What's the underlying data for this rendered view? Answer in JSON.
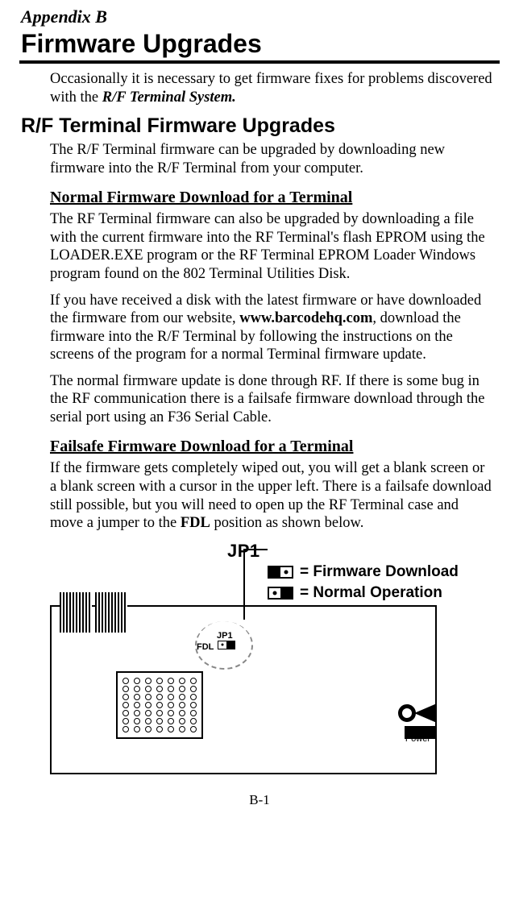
{
  "appendix": "Appendix B",
  "title": "Firmware Upgrades",
  "intro_a": "Occasionally it is necessary to get firmware fixes for problems discovered with the ",
  "intro_em": "R/F Terminal System.",
  "section": "R/F Terminal Firmware Upgrades",
  "p1": "The R/F Terminal firmware can be upgraded by downloading new firmware into the R/F Terminal from your computer.",
  "sub1": "Normal Firmware Download for a Terminal",
  "p2": "The RF Terminal firmware can also be upgraded by downloading a file with the current firmware into the RF Terminal's flash EPROM using the LOADER.EXE program or the RF Terminal EPROM Loader Windows program found on the 802 Terminal Utilities Disk.",
  "p3_a": "If you have received a disk with the latest firmware or have downloaded the firmware from our website, ",
  "p3_b": "www.barcodehq.com",
  "p3_c": ", download the firmware into the R/F Terminal by following the instructions on the screens of the program for a normal Terminal firmware update.",
  "p4": "The normal firmware update is done through RF. If there is some bug in the RF communication there is a failsafe firmware download through the serial port using an F36 Serial Cable.",
  "sub2": "Failsafe Firmware Download for a Terminal",
  "p5_a": "If the firmware gets completely wiped out, you will get a blank screen or a blank screen with a cursor in the upper left. There is a failsafe download still possible, but you will need to open up the RF Terminal case and move a jumper to the ",
  "p5_b": "FDL",
  "p5_c": " position as shown below.",
  "diagram": {
    "jp1": "JP1",
    "legend1": " = Firmware Download",
    "legend2": " = Normal Operation",
    "fdl": "FDL",
    "jp1small": "JP1",
    "power": "Power",
    "pin_rows": 7,
    "pin_cols": 7
  },
  "pagenum": "B-1"
}
